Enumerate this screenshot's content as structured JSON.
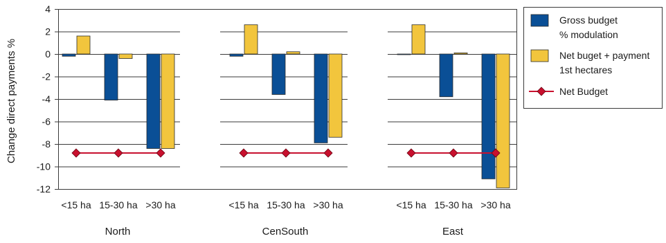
{
  "chart_data": {
    "type": "bar",
    "ylabel": "Change direct payments %",
    "xlabel": "",
    "ylim": [
      -12,
      4
    ],
    "yticks": [
      4,
      2,
      0,
      -2,
      -4,
      -6,
      -8,
      -10,
      -12
    ],
    "grid": true,
    "legend_position": "right",
    "groups": [
      "North",
      "CenSouth",
      "East"
    ],
    "categories": [
      "<15 ha",
      "15-30 ha",
      ">30 ha"
    ],
    "series": [
      {
        "name": "Gross budget % modulation",
        "legend_lines": [
          "Gross budget",
          "% modulation"
        ],
        "kind": "bar",
        "color": "#0a4f96",
        "values": [
          [
            -0.2,
            -4.1,
            -8.4
          ],
          [
            -0.2,
            -3.6,
            -7.9
          ],
          [
            0.0,
            -3.8,
            -11.1
          ]
        ]
      },
      {
        "name": "Net buget + payment 1st hectares",
        "legend_lines": [
          "Net buget + payment",
          "1st hectares"
        ],
        "kind": "bar",
        "color": "#f2c53d",
        "values": [
          [
            1.6,
            -0.4,
            -8.4
          ],
          [
            2.6,
            0.2,
            -7.4
          ],
          [
            2.6,
            0.1,
            -11.9
          ]
        ]
      },
      {
        "name": "Net Budget",
        "legend_lines": [
          "Net Budget"
        ],
        "kind": "line",
        "color": "#c8102e",
        "values": [
          [
            -8.8,
            -8.8,
            -8.8
          ],
          [
            -8.8,
            -8.8,
            -8.8
          ],
          [
            -8.8,
            -8.8,
            -8.8
          ]
        ]
      }
    ]
  }
}
